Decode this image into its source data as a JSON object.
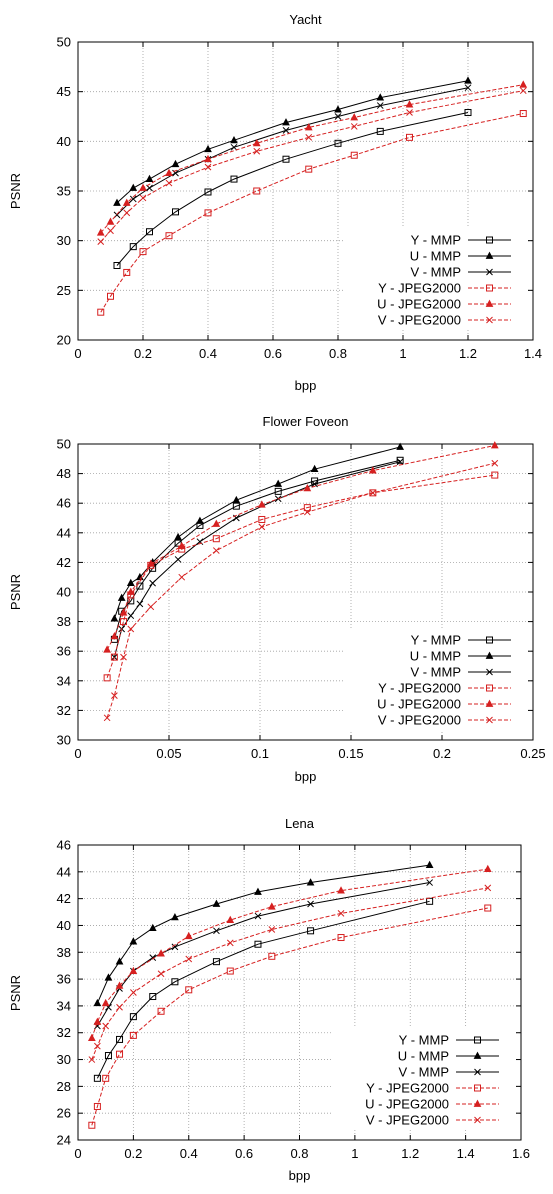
{
  "colors": {
    "mmp": "#000000",
    "jpeg2000": "#d62020",
    "grid": "#a0a0a0",
    "frame": "#000000"
  },
  "chart_data": [
    {
      "type": "line",
      "title": "Yacht",
      "xlabel": "bpp",
      "ylabel": "PSNR",
      "xlim": [
        0,
        1.4
      ],
      "ylim": [
        20,
        50
      ],
      "xticks": [
        0,
        0.2,
        0.4,
        0.6,
        0.8,
        1,
        1.2,
        1.4
      ],
      "xtick_labels": [
        "0",
        "0.2",
        "0.4",
        "0.6",
        "0.8",
        "1",
        "1.2",
        "1.4"
      ],
      "yticks": [
        20,
        25,
        30,
        35,
        40,
        45,
        50
      ],
      "ytick_labels": [
        "20",
        "25",
        "30",
        "35",
        "40",
        "45",
        "50"
      ],
      "grid": true,
      "legend_position": "bottom-right",
      "series": [
        {
          "name": "Y - MMP",
          "color": "#000000",
          "dash": false,
          "marker": "square",
          "x": [
            0.12,
            0.17,
            0.22,
            0.3,
            0.4,
            0.48,
            0.64,
            0.8,
            0.93,
            1.2
          ],
          "y": [
            27.5,
            29.4,
            30.9,
            32.9,
            34.9,
            36.2,
            38.2,
            39.8,
            41.0,
            42.9
          ]
        },
        {
          "name": "U - MMP",
          "color": "#000000",
          "dash": false,
          "marker": "triangle",
          "x": [
            0.12,
            0.17,
            0.22,
            0.3,
            0.4,
            0.48,
            0.64,
            0.8,
            0.93,
            1.2
          ],
          "y": [
            33.8,
            35.3,
            36.2,
            37.7,
            39.2,
            40.1,
            41.9,
            43.2,
            44.4,
            46.1
          ]
        },
        {
          "name": "V - MMP",
          "color": "#000000",
          "dash": false,
          "marker": "cross",
          "x": [
            0.12,
            0.17,
            0.22,
            0.3,
            0.4,
            0.48,
            0.64,
            0.8,
            0.93,
            1.2
          ],
          "y": [
            32.6,
            34.2,
            35.3,
            36.8,
            38.2,
            39.4,
            41.1,
            42.5,
            43.6,
            45.4
          ]
        },
        {
          "name": "Y - JPEG2000",
          "color": "#d62020",
          "dash": true,
          "marker": "square",
          "x": [
            0.07,
            0.1,
            0.15,
            0.2,
            0.28,
            0.4,
            0.55,
            0.71,
            0.85,
            1.02,
            1.37
          ],
          "y": [
            22.8,
            24.4,
            26.8,
            28.9,
            30.5,
            32.8,
            35.0,
            37.2,
            38.6,
            40.4,
            42.8
          ]
        },
        {
          "name": "U - JPEG2000",
          "color": "#d62020",
          "dash": true,
          "marker": "triangle",
          "x": [
            0.07,
            0.1,
            0.15,
            0.2,
            0.28,
            0.4,
            0.55,
            0.71,
            0.85,
            1.02,
            1.37
          ],
          "y": [
            30.8,
            31.9,
            33.8,
            35.3,
            36.8,
            38.2,
            39.8,
            41.4,
            42.4,
            43.7,
            45.7
          ]
        },
        {
          "name": "V - JPEG2000",
          "color": "#d62020",
          "dash": true,
          "marker": "cross",
          "x": [
            0.07,
            0.1,
            0.15,
            0.2,
            0.28,
            0.4,
            0.55,
            0.71,
            0.85,
            1.02,
            1.37
          ],
          "y": [
            29.9,
            31.0,
            32.8,
            34.3,
            35.8,
            37.4,
            39.0,
            40.4,
            41.5,
            42.9,
            45.1
          ]
        }
      ]
    },
    {
      "type": "line",
      "title": "Flower Foveon",
      "xlabel": "bpp",
      "ylabel": "PSNR",
      "xlim": [
        0,
        0.25
      ],
      "ylim": [
        30,
        50
      ],
      "xticks": [
        0,
        0.05,
        0.1,
        0.15,
        0.2,
        0.25
      ],
      "xtick_labels": [
        "0",
        "0.05",
        "0.1",
        "0.15",
        "0.2",
        "0.25"
      ],
      "yticks": [
        30,
        32,
        34,
        36,
        38,
        40,
        42,
        44,
        46,
        48,
        50
      ],
      "ytick_labels": [
        "30",
        "32",
        "34",
        "36",
        "38",
        "40",
        "42",
        "44",
        "46",
        "48",
        "50"
      ],
      "grid": true,
      "legend_position": "bottom-right",
      "series": [
        {
          "name": "Y - MMP",
          "color": "#000000",
          "dash": false,
          "marker": "square",
          "x": [
            0.02,
            0.024,
            0.029,
            0.034,
            0.041,
            0.055,
            0.067,
            0.087,
            0.11,
            0.13,
            0.177
          ],
          "y": [
            36.8,
            38.7,
            39.4,
            40.4,
            41.6,
            43.3,
            44.5,
            45.8,
            46.8,
            47.5,
            48.9
          ]
        },
        {
          "name": "U - MMP",
          "color": "#000000",
          "dash": false,
          "marker": "triangle",
          "x": [
            0.02,
            0.024,
            0.029,
            0.034,
            0.041,
            0.055,
            0.067,
            0.087,
            0.11,
            0.13,
            0.177
          ],
          "y": [
            38.2,
            39.6,
            40.6,
            41.0,
            42.0,
            43.7,
            44.8,
            46.2,
            47.3,
            48.3,
            49.8
          ]
        },
        {
          "name": "V - MMP",
          "color": "#000000",
          "dash": false,
          "marker": "cross",
          "x": [
            0.02,
            0.024,
            0.029,
            0.034,
            0.041,
            0.055,
            0.067,
            0.087,
            0.11,
            0.13,
            0.177
          ],
          "y": [
            35.6,
            37.5,
            38.4,
            39.2,
            40.6,
            42.2,
            43.4,
            45.0,
            46.3,
            47.3,
            48.8
          ]
        },
        {
          "name": "Y - JPEG2000",
          "color": "#d62020",
          "dash": true,
          "marker": "square",
          "x": [
            0.016,
            0.02,
            0.025,
            0.029,
            0.04,
            0.057,
            0.076,
            0.101,
            0.126,
            0.162,
            0.229
          ],
          "y": [
            34.2,
            35.6,
            38.0,
            39.8,
            41.8,
            42.9,
            43.6,
            44.9,
            45.7,
            46.7,
            47.9
          ]
        },
        {
          "name": "U - JPEG2000",
          "color": "#d62020",
          "dash": true,
          "marker": "triangle",
          "x": [
            0.016,
            0.02,
            0.025,
            0.029,
            0.04,
            0.057,
            0.076,
            0.101,
            0.126,
            0.162,
            0.229
          ],
          "y": [
            36.1,
            37.0,
            38.6,
            40.0,
            41.9,
            43.1,
            44.6,
            45.9,
            47.0,
            48.2,
            49.9
          ]
        },
        {
          "name": "V - JPEG2000",
          "color": "#d62020",
          "dash": true,
          "marker": "cross",
          "x": [
            0.016,
            0.02,
            0.025,
            0.029,
            0.04,
            0.057,
            0.076,
            0.101,
            0.126,
            0.162,
            0.229
          ],
          "y": [
            31.5,
            33.0,
            35.6,
            37.5,
            39.0,
            41.0,
            42.8,
            44.4,
            45.4,
            46.7,
            48.7
          ]
        }
      ]
    },
    {
      "type": "line",
      "title": "Lena",
      "xlabel": "bpp",
      "ylabel": "PSNR",
      "xlim": [
        0,
        1.6
      ],
      "ylim": [
        24,
        46
      ],
      "xticks": [
        0,
        0.2,
        0.4,
        0.6,
        0.8,
        1,
        1.2,
        1.4,
        1.6
      ],
      "xtick_labels": [
        "0",
        "0.2",
        "0.4",
        "0.6",
        "0.8",
        "1",
        "1.2",
        "1.4",
        "1.6"
      ],
      "yticks": [
        24,
        26,
        28,
        30,
        32,
        34,
        36,
        38,
        40,
        42,
        44,
        46
      ],
      "ytick_labels": [
        "24",
        "26",
        "28",
        "30",
        "32",
        "34",
        "36",
        "38",
        "40",
        "42",
        "44",
        "46"
      ],
      "grid": true,
      "legend_position": "bottom-right",
      "series": [
        {
          "name": "Y - MMP",
          "color": "#000000",
          "dash": false,
          "marker": "square",
          "x": [
            0.07,
            0.11,
            0.15,
            0.2,
            0.27,
            0.35,
            0.5,
            0.65,
            0.84,
            1.27
          ],
          "y": [
            28.6,
            30.3,
            31.5,
            33.2,
            34.7,
            35.8,
            37.3,
            38.6,
            39.6,
            41.8
          ]
        },
        {
          "name": "U - MMP",
          "color": "#000000",
          "dash": false,
          "marker": "triangle",
          "x": [
            0.07,
            0.11,
            0.15,
            0.2,
            0.27,
            0.35,
            0.5,
            0.65,
            0.84,
            1.27
          ],
          "y": [
            34.2,
            36.1,
            37.3,
            38.8,
            39.8,
            40.6,
            41.6,
            42.5,
            43.2,
            44.5
          ]
        },
        {
          "name": "V - MMP",
          "color": "#000000",
          "dash": false,
          "marker": "cross",
          "x": [
            0.07,
            0.11,
            0.15,
            0.2,
            0.27,
            0.35,
            0.5,
            0.65,
            0.84,
            1.27
          ],
          "y": [
            32.5,
            33.9,
            35.3,
            36.6,
            37.6,
            38.4,
            39.6,
            40.7,
            41.6,
            43.2
          ]
        },
        {
          "name": "Y - JPEG2000",
          "color": "#d62020",
          "dash": true,
          "marker": "square",
          "x": [
            0.05,
            0.07,
            0.1,
            0.15,
            0.2,
            0.3,
            0.4,
            0.55,
            0.7,
            0.95,
            1.48
          ],
          "y": [
            25.1,
            26.5,
            28.6,
            30.4,
            31.8,
            33.6,
            35.2,
            36.6,
            37.7,
            39.1,
            41.3
          ]
        },
        {
          "name": "U - JPEG2000",
          "color": "#d62020",
          "dash": true,
          "marker": "triangle",
          "x": [
            0.05,
            0.07,
            0.1,
            0.15,
            0.2,
            0.3,
            0.4,
            0.55,
            0.7,
            0.95,
            1.48
          ],
          "y": [
            31.6,
            32.8,
            34.2,
            35.5,
            36.6,
            37.9,
            39.2,
            40.4,
            41.4,
            42.6,
            44.2
          ]
        },
        {
          "name": "V - JPEG2000",
          "color": "#d62020",
          "dash": true,
          "marker": "cross",
          "x": [
            0.05,
            0.07,
            0.1,
            0.15,
            0.2,
            0.3,
            0.4,
            0.55,
            0.7,
            0.95,
            1.48
          ],
          "y": [
            30.0,
            31.0,
            32.5,
            33.9,
            35.0,
            36.4,
            37.5,
            38.7,
            39.7,
            40.9,
            42.8
          ]
        }
      ]
    }
  ]
}
